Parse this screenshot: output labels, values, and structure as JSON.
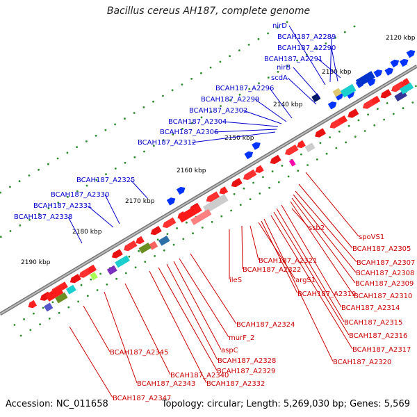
{
  "title": "Bacillus cereus AH187, complete genome",
  "footer": {
    "accession": "Accession: NC_011658",
    "summary": "Topology: circular; Length: 5,269,030 bp; Genes: 5,569"
  },
  "colors": {
    "forward_label": "#0000cc",
    "reverse_label": "#cc0000",
    "backbone": "#888888",
    "gc_dot": "#2e8b2e"
  },
  "ticks": [
    "2120 kbp",
    "2130 kbp",
    "2140 kbp",
    "2150 kbp",
    "2160 kbp",
    "2170 kbp",
    "2180 kbp",
    "2190 kbp"
  ],
  "forward_labels": [
    "nirD",
    "BCAH187_A2289",
    "BCAH187_A2290",
    "BCAH187_A2291",
    "nirB",
    "scdA",
    "BCAH187_A2296",
    "BCAH187_A2299",
    "BCAH187_A2302",
    "BCAH187_A2304",
    "BCAH187_A2306",
    "BCAH187_A2312",
    "BCAH187_A2325",
    "BCAH187_A2330",
    "BCAH187_A2331",
    "BCAH187_A2338"
  ],
  "reverse_labels": [
    "spoVS1",
    "ssb2",
    "BCAH187_A2305",
    "BCAH187_A2307",
    "BCAH187_A2308",
    "BCAH187_A2309",
    "BCAH187_A2310",
    "BCAH187_A2314",
    "BCAH187_A2315",
    "BCAH187_A2316",
    "BCAH187_A2317",
    "BCAH187_A2320",
    "BCAH187_A2319",
    "argS1",
    "BCAH187_A2321",
    "BCAH187_A2322",
    "ileS",
    "BCAH187_A2324",
    "murF_2",
    "aspC",
    "BCAH187_A2328",
    "BCAH187_A2329",
    "BCAH187_A2332",
    "BCAH187_A2340",
    "BCAH187_A2343",
    "BCAH187_A2345",
    "BCAH187_A2347"
  ]
}
